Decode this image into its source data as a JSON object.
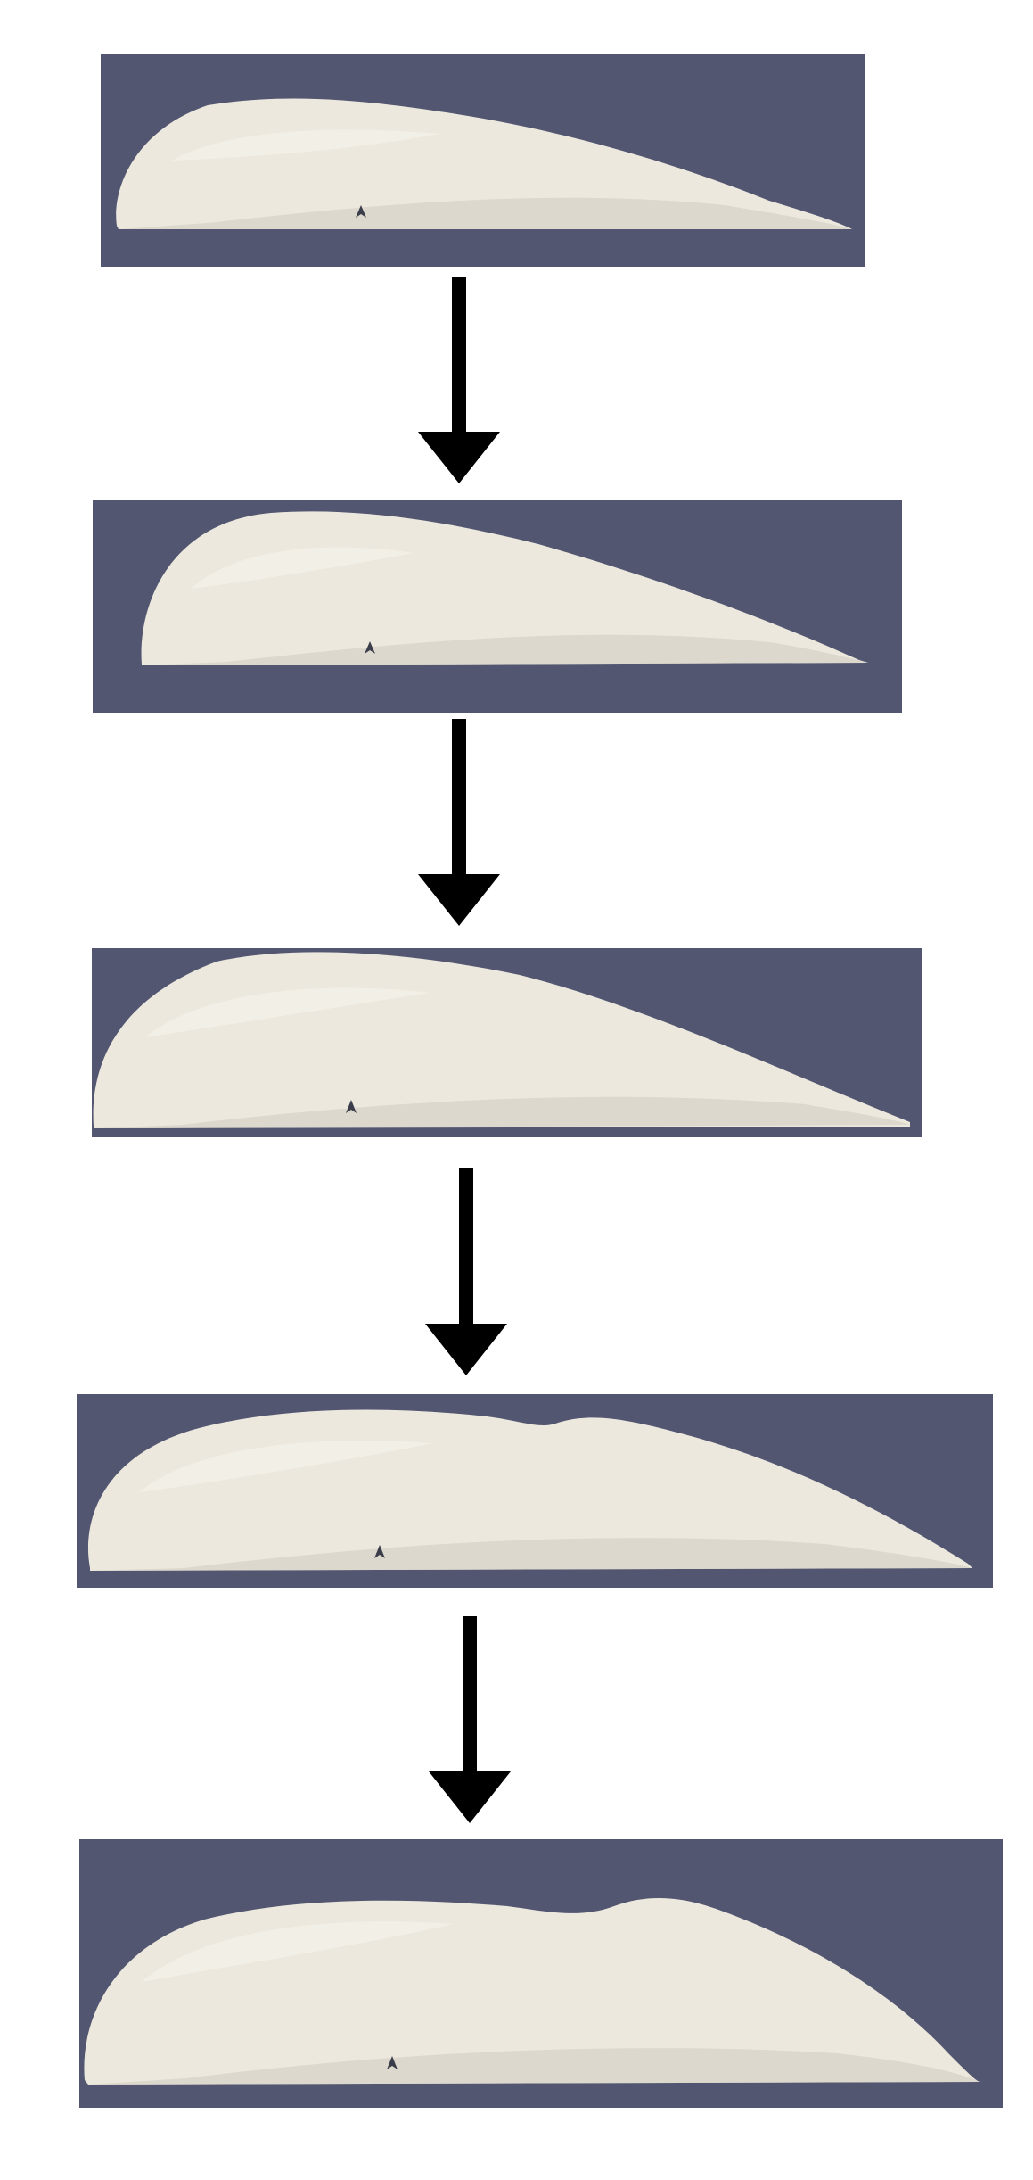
{
  "figure": {
    "background_color": "#ffffff",
    "panel_background_color": "#525670",
    "shape_fill_color": "#ece8de",
    "shape_shade_color": "#d8d3c7",
    "arrow_color": "#000000",
    "panels": [
      {
        "id": "stage-1",
        "icon": "rendered-3d-shape"
      },
      {
        "id": "stage-2",
        "icon": "rendered-3d-shape"
      },
      {
        "id": "stage-3",
        "icon": "rendered-3d-shape"
      },
      {
        "id": "stage-4",
        "icon": "rendered-3d-shape"
      },
      {
        "id": "stage-5",
        "icon": "rendered-3d-shape"
      }
    ],
    "arrows": [
      {
        "icon": "down-arrow-icon"
      },
      {
        "icon": "down-arrow-icon"
      },
      {
        "icon": "down-arrow-icon"
      },
      {
        "icon": "down-arrow-icon"
      }
    ]
  }
}
